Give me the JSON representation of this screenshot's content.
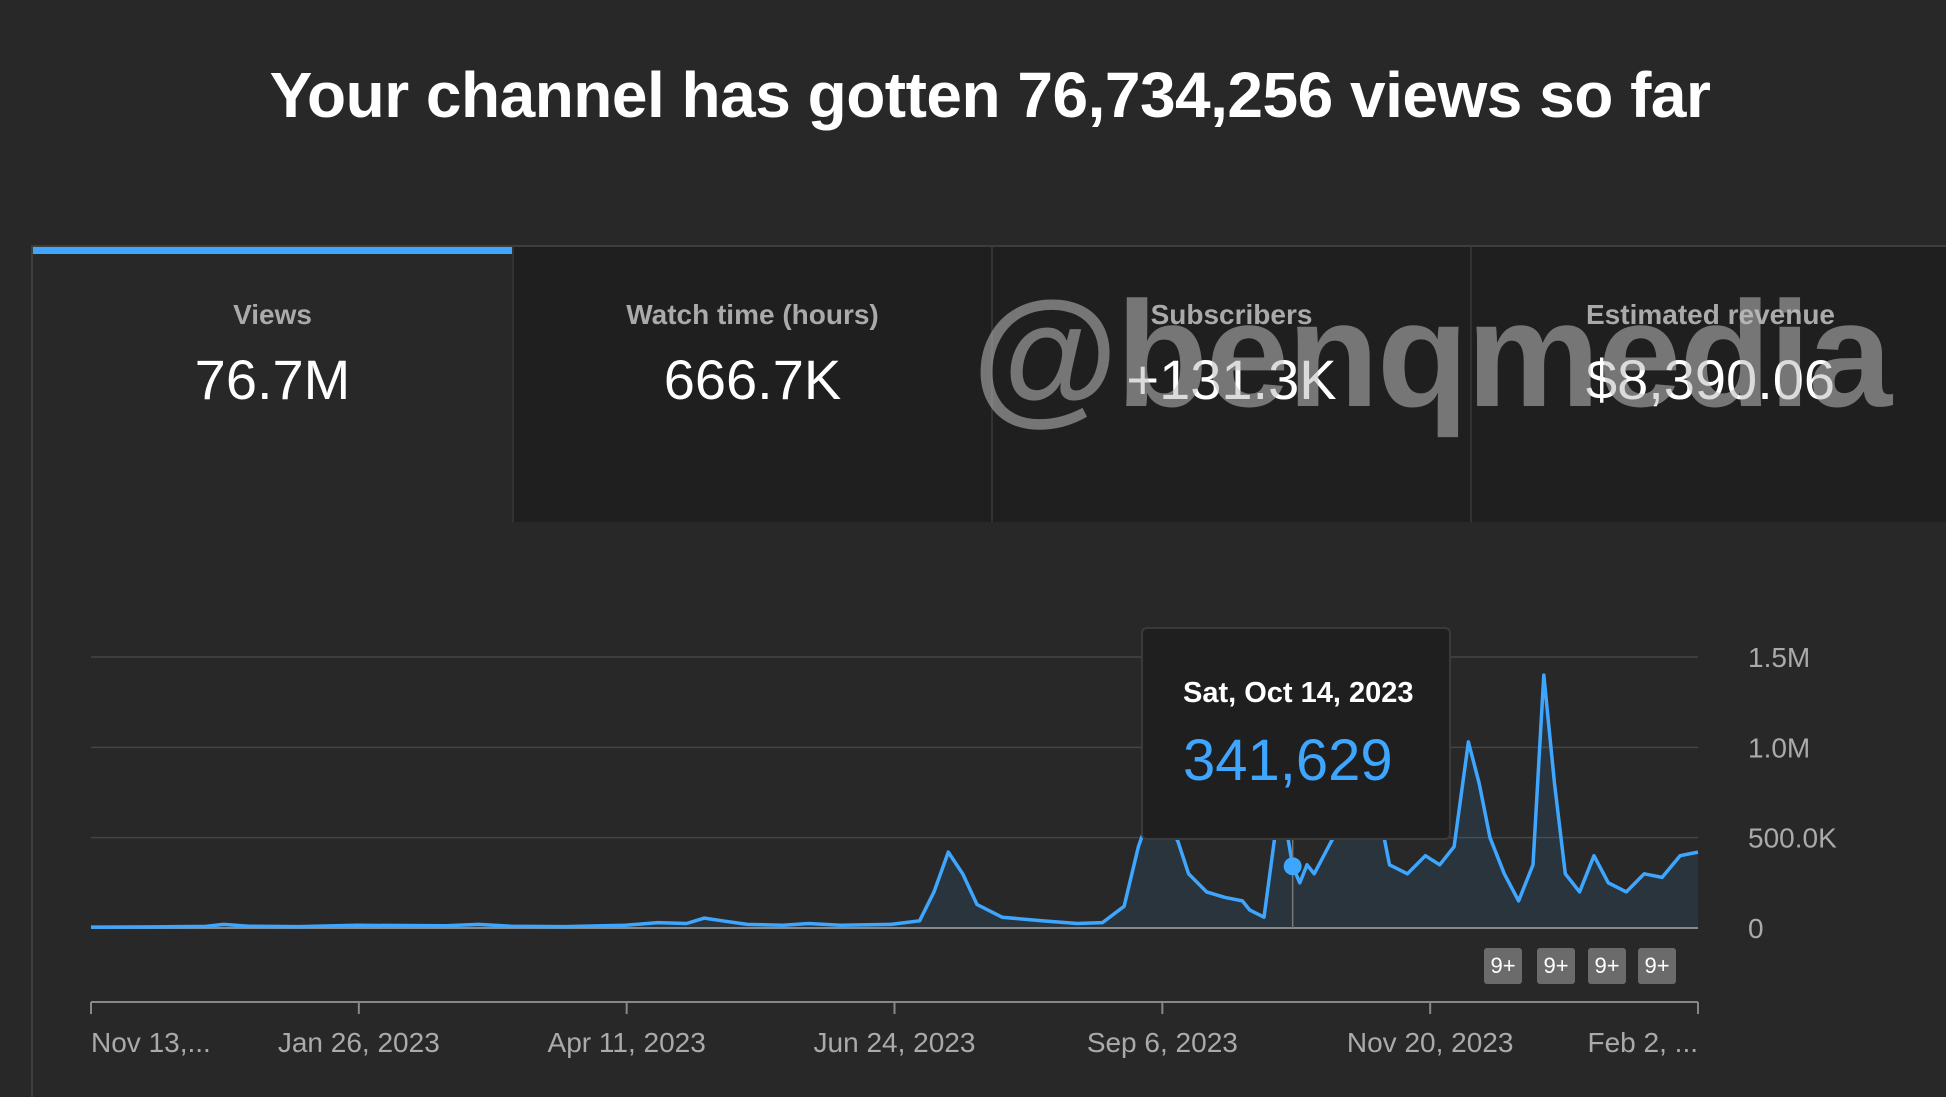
{
  "header": {
    "title": "Your channel has gotten 76,734,256 views so far"
  },
  "tabs": [
    {
      "label": "Views",
      "value": "76.7M",
      "active": true
    },
    {
      "label": "Watch time (hours)",
      "value": "666.7K",
      "active": false
    },
    {
      "label": "Subscribers",
      "value": "+131.3K",
      "active": false
    },
    {
      "label": "Estimated revenue",
      "value": "$8,390.06",
      "active": false
    }
  ],
  "watermark": "@benqmedia",
  "tooltip": {
    "date": "Sat, Oct 14, 2023",
    "value": "341,629"
  },
  "badges": [
    "9+",
    "9+",
    "9+",
    "9+"
  ],
  "colors": {
    "accent": "#3ea6ff",
    "line": "#3ea6ff",
    "background": "#282828"
  },
  "chart_data": {
    "type": "area",
    "series": [
      {
        "name": "Views",
        "color": "#3ea6ff"
      }
    ],
    "x_tick_labels": [
      "Nov 13,...",
      "Jan 26, 2023",
      "Apr 11, 2023",
      "Jun 24, 2023",
      "Sep 6, 2023",
      "Nov 20, 2023",
      "Feb 2, ..."
    ],
    "y_tick_labels": [
      "1.5M",
      "1.0M",
      "500.0K",
      "0"
    ],
    "ylim": [
      0,
      1500000
    ],
    "grid": true,
    "points": [
      [
        "2022-11-13",
        5000
      ],
      [
        "2022-11-30",
        6000
      ],
      [
        "2022-12-15",
        9000
      ],
      [
        "2022-12-20",
        20000
      ],
      [
        "2022-12-27",
        10000
      ],
      [
        "2023-01-10",
        8000
      ],
      [
        "2023-01-26",
        15000
      ],
      [
        "2023-02-20",
        12000
      ],
      [
        "2023-03-01",
        20000
      ],
      [
        "2023-03-10",
        10000
      ],
      [
        "2023-03-25",
        8000
      ],
      [
        "2023-04-11",
        15000
      ],
      [
        "2023-04-20",
        30000
      ],
      [
        "2023-04-28",
        25000
      ],
      [
        "2023-05-03",
        55000
      ],
      [
        "2023-05-08",
        40000
      ],
      [
        "2023-05-15",
        20000
      ],
      [
        "2023-05-25",
        15000
      ],
      [
        "2023-06-01",
        25000
      ],
      [
        "2023-06-10",
        15000
      ],
      [
        "2023-06-24",
        20000
      ],
      [
        "2023-07-02",
        40000
      ],
      [
        "2023-07-06",
        200000
      ],
      [
        "2023-07-10",
        420000
      ],
      [
        "2023-07-14",
        300000
      ],
      [
        "2023-07-18",
        130000
      ],
      [
        "2023-07-25",
        60000
      ],
      [
        "2023-08-05",
        40000
      ],
      [
        "2023-08-15",
        25000
      ],
      [
        "2023-08-22",
        30000
      ],
      [
        "2023-08-28",
        120000
      ],
      [
        "2023-09-01",
        450000
      ],
      [
        "2023-09-04",
        620000
      ],
      [
        "2023-09-06",
        520000
      ],
      [
        "2023-09-08",
        600000
      ],
      [
        "2023-09-10",
        550000
      ],
      [
        "2023-09-12",
        480000
      ],
      [
        "2023-09-15",
        300000
      ],
      [
        "2023-09-20",
        200000
      ],
      [
        "2023-09-25",
        170000
      ],
      [
        "2023-09-30",
        150000
      ],
      [
        "2023-10-02",
        100000
      ],
      [
        "2023-10-06",
        60000
      ],
      [
        "2023-10-09",
        500000
      ],
      [
        "2023-10-11",
        700000
      ],
      [
        "2023-10-14",
        341629
      ],
      [
        "2023-10-16",
        250000
      ],
      [
        "2023-10-18",
        350000
      ],
      [
        "2023-10-20",
        300000
      ],
      [
        "2023-10-24",
        450000
      ],
      [
        "2023-10-28",
        600000
      ],
      [
        "2023-11-01",
        550000
      ],
      [
        "2023-11-04",
        700000
      ],
      [
        "2023-11-07",
        650000
      ],
      [
        "2023-11-10",
        350000
      ],
      [
        "2023-11-15",
        300000
      ],
      [
        "2023-11-20",
        400000
      ],
      [
        "2023-11-24",
        350000
      ],
      [
        "2023-11-28",
        450000
      ],
      [
        "2023-12-02",
        1030000
      ],
      [
        "2023-12-05",
        800000
      ],
      [
        "2023-12-08",
        500000
      ],
      [
        "2023-12-12",
        300000
      ],
      [
        "2023-12-16",
        150000
      ],
      [
        "2023-12-20",
        350000
      ],
      [
        "2023-12-23",
        1400000
      ],
      [
        "2023-12-26",
        800000
      ],
      [
        "2023-12-29",
        300000
      ],
      [
        "2024-01-02",
        200000
      ],
      [
        "2024-01-06",
        400000
      ],
      [
        "2024-01-10",
        250000
      ],
      [
        "2024-01-15",
        200000
      ],
      [
        "2024-01-20",
        300000
      ],
      [
        "2024-01-25",
        280000
      ],
      [
        "2024-01-30",
        400000
      ],
      [
        "2024-02-04",
        420000
      ]
    ]
  }
}
